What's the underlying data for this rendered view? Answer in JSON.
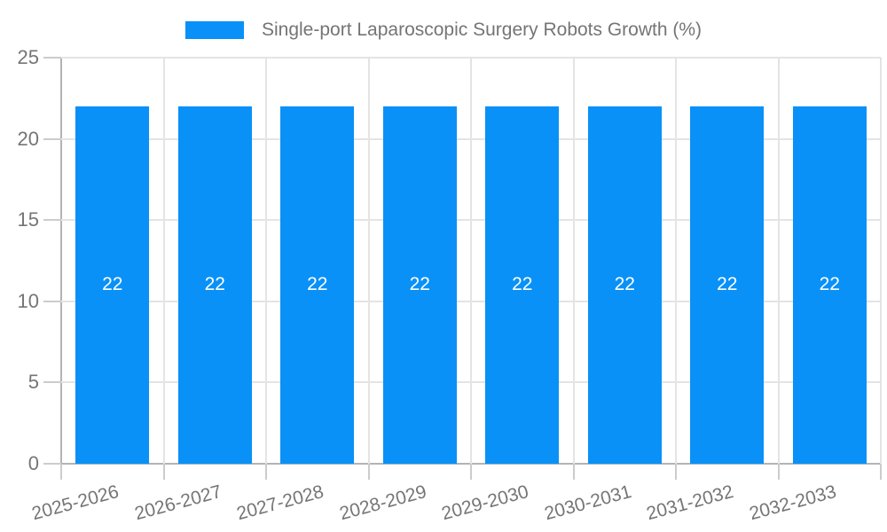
{
  "chart_data": {
    "type": "bar",
    "title": "Single-port Laparoscopic Surgery Robots Growth (%)",
    "categories": [
      "2025-2026",
      "2026-2027",
      "2027-2028",
      "2028-2029",
      "2029-2030",
      "2030-2031",
      "2031-2032",
      "2032-2033"
    ],
    "series": [
      {
        "name": "Single-port Laparoscopic Surgery Robots Growth (%)",
        "values": [
          22,
          22,
          22,
          22,
          22,
          22,
          22,
          22
        ]
      }
    ],
    "bar_value_labels": [
      "22",
      "22",
      "22",
      "22",
      "22",
      "22",
      "22",
      "22"
    ],
    "xlabel": "",
    "ylabel": "",
    "ylim": [
      0,
      25
    ],
    "yticks": [
      0,
      5,
      10,
      15,
      20,
      25
    ],
    "grid": true,
    "legend_position": "top-center",
    "x_label_rotation_deg": -15,
    "colors": {
      "bar": "#0991f7",
      "value_label": "#ffffff",
      "axis_text": "#757575",
      "gridline": "#e4e4e4",
      "tick": "#cccccc",
      "axis_line": "#b3b3b3",
      "background": "#ffffff"
    }
  },
  "legend": {
    "label": "Single-port Laparoscopic Surgery Robots Growth (%)",
    "swatch_color": "#0991f7"
  }
}
